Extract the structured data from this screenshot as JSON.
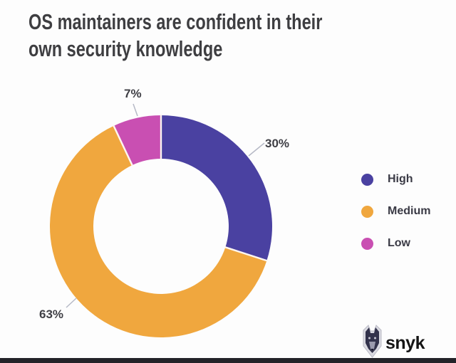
{
  "title": {
    "text": "OS maintainers are confident in their own security knowledge",
    "line1": "OS maintainers are confident in their",
    "line2": "own security knowledge"
  },
  "chart_data": {
    "type": "pie",
    "subtype": "donut",
    "categories": [
      "High",
      "Medium",
      "Low"
    ],
    "values": [
      30,
      63,
      7
    ],
    "labels": [
      "30%",
      "63%",
      "7%"
    ],
    "colors": [
      "#4a41a1",
      "#f0a73e",
      "#c94fb2"
    ],
    "start_angle_deg": 0,
    "direction": "clockwise",
    "inner_radius_ratio": 0.61,
    "legend_position": "right",
    "title": "OS maintainers are confident in their own security knowledge"
  },
  "legend": {
    "items": [
      {
        "label": "High",
        "color": "#4a41a1"
      },
      {
        "label": "Medium",
        "color": "#f0a73e"
      },
      {
        "label": "Low",
        "color": "#c94fb2"
      }
    ]
  },
  "branding": {
    "logo_text": "snyk"
  },
  "colors": {
    "background": "#fdfdfd",
    "title_text": "#3e3e41",
    "leader_line": "#b6b9c6",
    "footer_bar": "#232329",
    "logo_dark": "#32324b"
  }
}
